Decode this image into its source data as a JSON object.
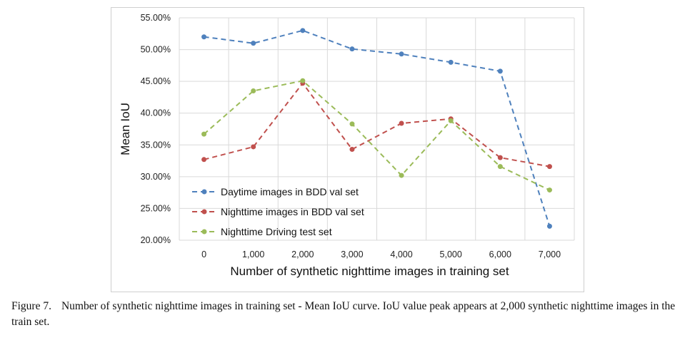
{
  "chart_data": {
    "type": "line",
    "xlabel": "Number of synthetic nighttime images in training set",
    "ylabel": "Mean IoU",
    "categories": [
      "0",
      "1,000",
      "2,000",
      "3,000",
      "4,000",
      "5,000",
      "6,000",
      "7,000"
    ],
    "ylim": [
      0.2,
      0.55
    ],
    "yticks": [
      "20.00%",
      "25.00%",
      "30.00%",
      "35.00%",
      "40.00%",
      "45.00%",
      "50.00%",
      "55.00%"
    ],
    "grid": true,
    "legend_position": "bottom-left",
    "series": [
      {
        "name": "Daytime images in BDD val set",
        "color": "#4f81bd",
        "values": [
          0.52,
          0.51,
          0.53,
          0.501,
          0.493,
          0.48,
          0.466,
          0.222
        ]
      },
      {
        "name": "Nighttime images in BDD val set",
        "color": "#c0504d",
        "values": [
          0.327,
          0.347,
          0.447,
          0.343,
          0.384,
          0.391,
          0.33,
          0.316
        ]
      },
      {
        "name": "Nighttime Driving test set",
        "color": "#9bbb59",
        "values": [
          0.367,
          0.435,
          0.451,
          0.383,
          0.302,
          0.388,
          0.316,
          0.279
        ]
      }
    ]
  },
  "caption": {
    "label": "Figure 7.",
    "text": "Number of synthetic nighttime images in training set - Mean IoU curve. IoU value peak appears at 2,000 synthetic nighttime images in the train set."
  }
}
